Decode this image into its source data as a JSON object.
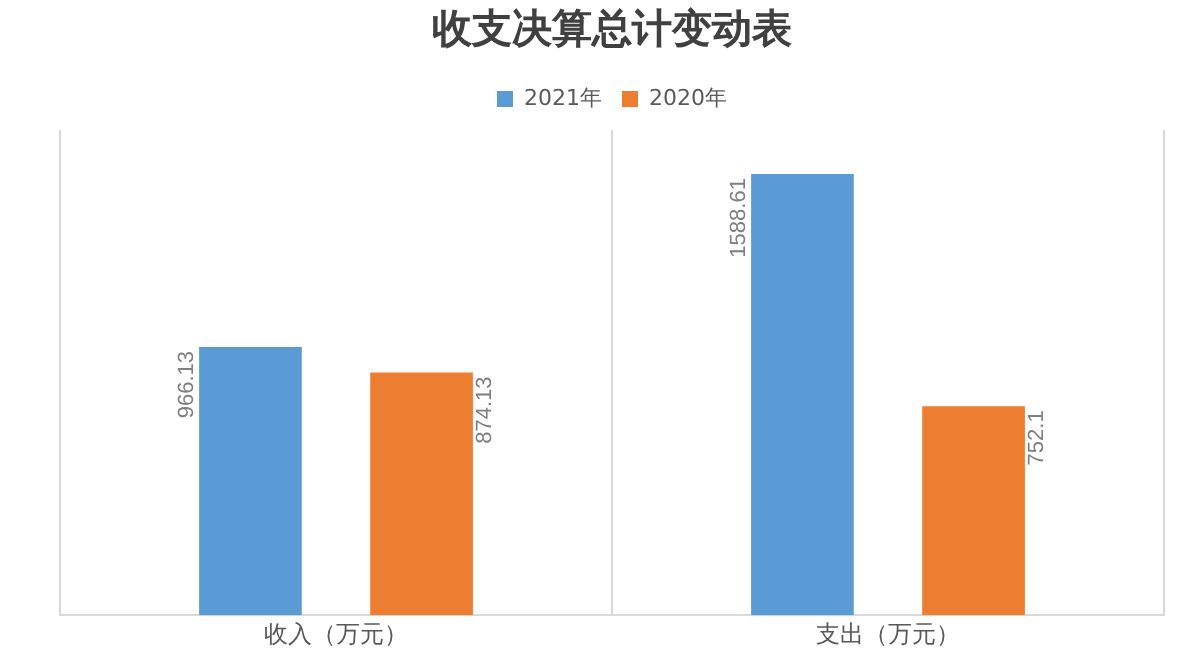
{
  "chart_data": {
    "type": "bar",
    "title": "收支决算总计变动表",
    "categories": [
      "收入（万元）",
      "支出（万元）"
    ],
    "series": [
      {
        "name": "2021年",
        "color": "#5b9bd5",
        "values": [
          966.13,
          1588.61
        ]
      },
      {
        "name": "2020年",
        "color": "#ed7d31",
        "values": [
          874.13,
          752.1
        ]
      }
    ],
    "data_labels": true,
    "legend": "top",
    "grid": "x"
  }
}
